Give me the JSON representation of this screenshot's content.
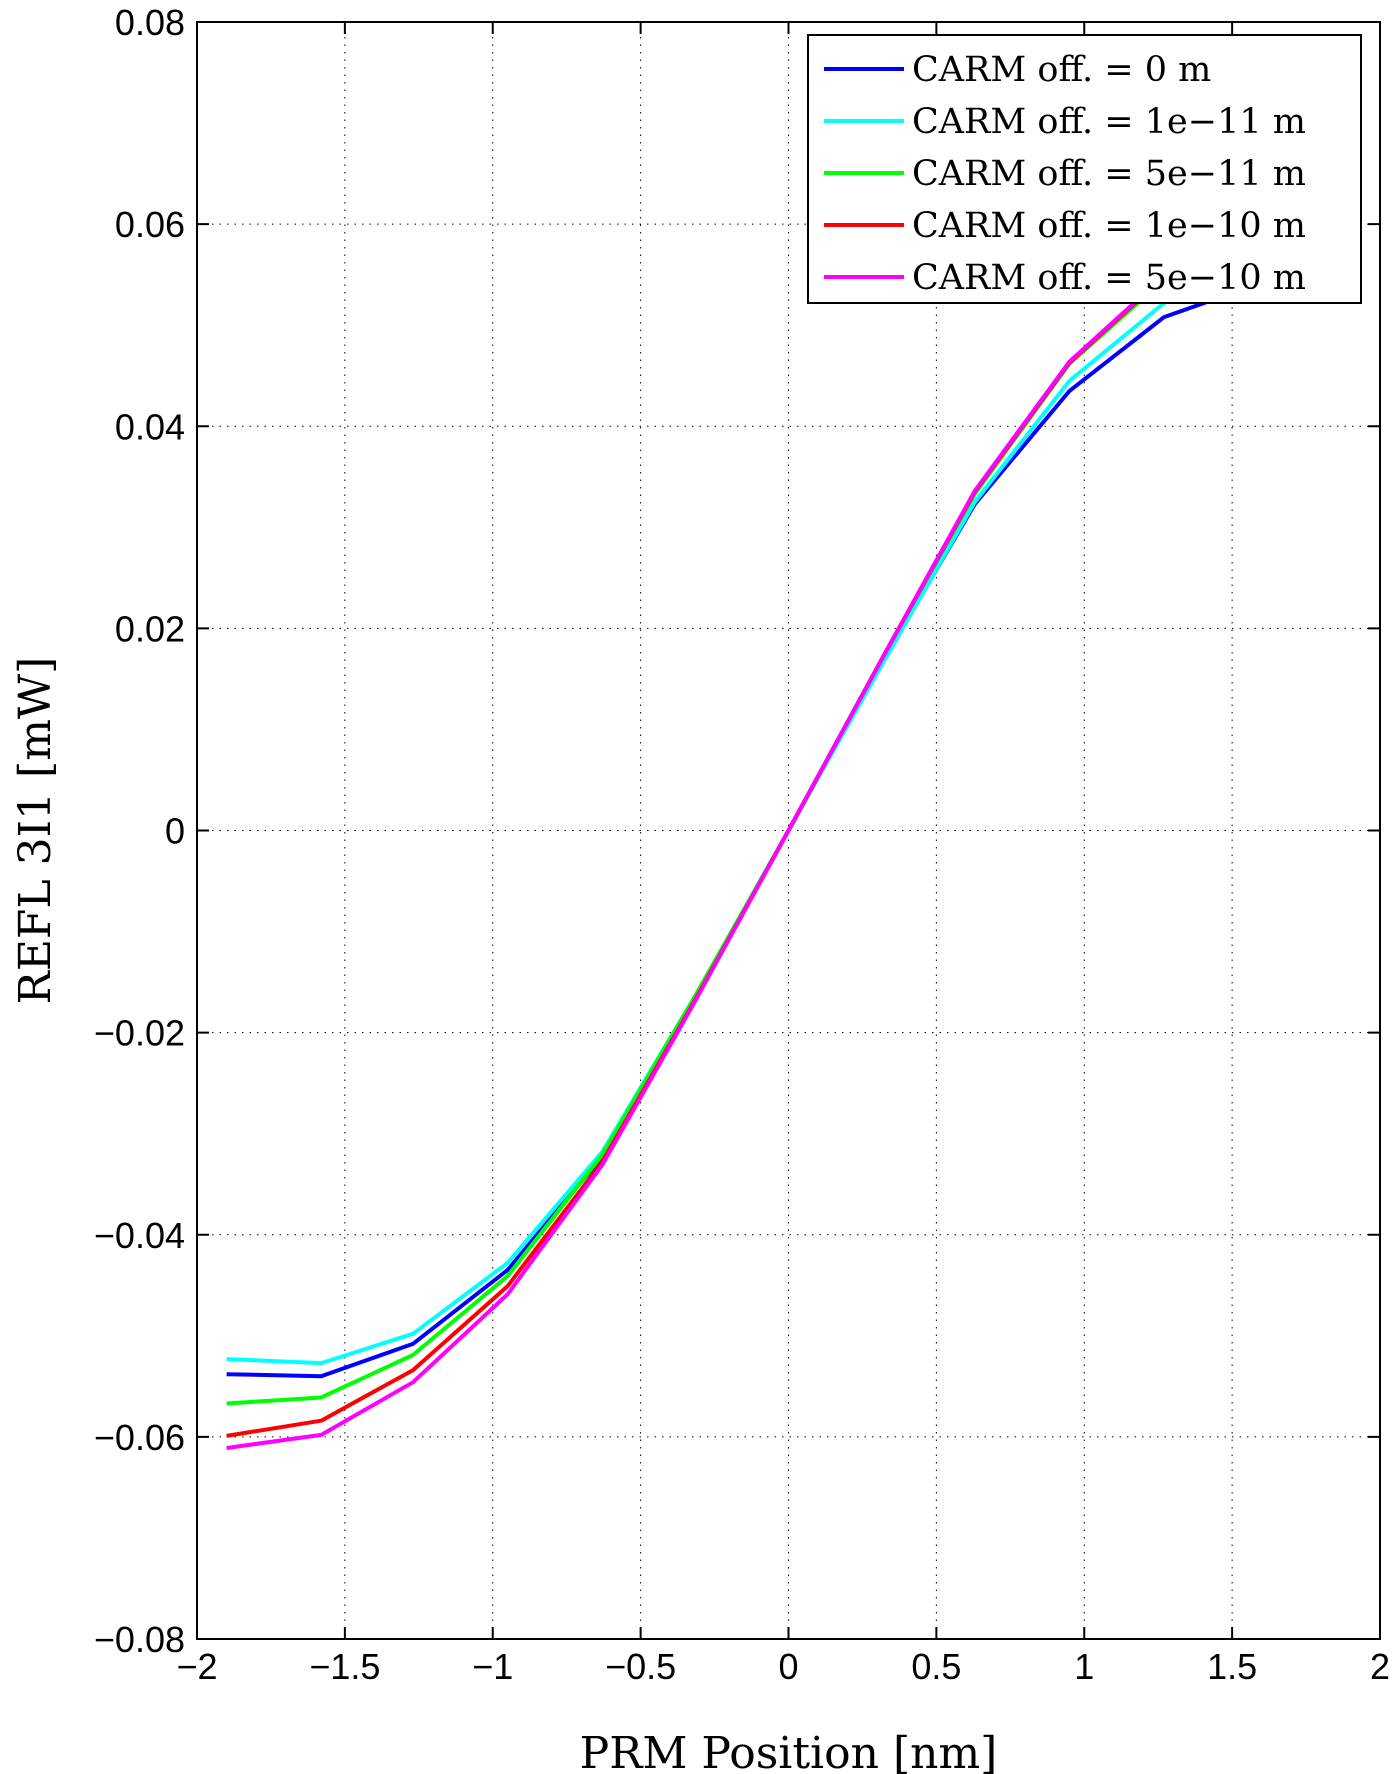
{
  "chart_data": {
    "type": "line",
    "xlabel": "PRM Position [nm]",
    "ylabel": "REFL 3I1 [mW]",
    "xlim": [
      -2,
      2
    ],
    "ylim": [
      -0.08,
      0.08
    ],
    "xticks": [
      -2,
      -1.5,
      -1,
      -0.5,
      0,
      0.5,
      1,
      1.5,
      2
    ],
    "xtick_labels": [
      "−2",
      "−1.5",
      "−1",
      "−0.5",
      "0",
      "0.5",
      "1",
      "1.5",
      "2"
    ],
    "yticks": [
      -0.08,
      -0.06,
      -0.04,
      -0.02,
      0,
      0.02,
      0.04,
      0.06,
      0.08
    ],
    "ytick_labels": [
      "−0.08",
      "−0.06",
      "−0.04",
      "−0.02",
      "0",
      "0.02",
      "0.04",
      "0.06",
      "0.08"
    ],
    "grid": true,
    "legend_position": "top-right",
    "x": [
      -1.9,
      -1.58,
      -1.27,
      -0.95,
      -0.63,
      -0.32,
      0,
      0.32,
      0.63,
      0.95,
      1.27,
      1.58,
      1.9
    ],
    "series": [
      {
        "name": "CARM off. = 0 m",
        "color": "#0000ff",
        "values": [
          -0.0538,
          -0.054,
          -0.0508,
          -0.0435,
          -0.0323,
          -0.0168,
          0,
          0.0168,
          0.0323,
          0.0435,
          0.0508,
          0.054,
          0.0538
        ]
      },
      {
        "name": "CARM off. = 1e−11 m",
        "color": "#00ffff",
        "values": [
          -0.0523,
          -0.0527,
          -0.0498,
          -0.0428,
          -0.0318,
          -0.0166,
          0,
          0.0166,
          0.0325,
          0.0445,
          0.0522,
          0.0555,
          0.0553
        ]
      },
      {
        "name": "CARM off. = 5e−11 m",
        "color": "#00ff00",
        "values": [
          -0.0567,
          -0.0561,
          -0.0519,
          -0.0441,
          -0.0321,
          -0.0166,
          0,
          0.0172,
          0.0333,
          0.0462,
          0.0545,
          0.0585,
          0.0595
        ]
      },
      {
        "name": "CARM off. = 1e−10 m",
        "color": "#ff0000",
        "values": [
          -0.0599,
          -0.0584,
          -0.0534,
          -0.0451,
          -0.0328,
          -0.017,
          0,
          0.0172,
          0.0335,
          0.0463,
          0.0548,
          0.059,
          0.06
        ]
      },
      {
        "name": "CARM off. = 5e−10 m",
        "color": "#ff00ff",
        "values": [
          -0.0611,
          -0.0598,
          -0.0546,
          -0.0459,
          -0.0331,
          -0.0171,
          0,
          0.0172,
          0.0336,
          0.0464,
          0.0549,
          0.0592,
          0.0605
        ]
      }
    ]
  }
}
